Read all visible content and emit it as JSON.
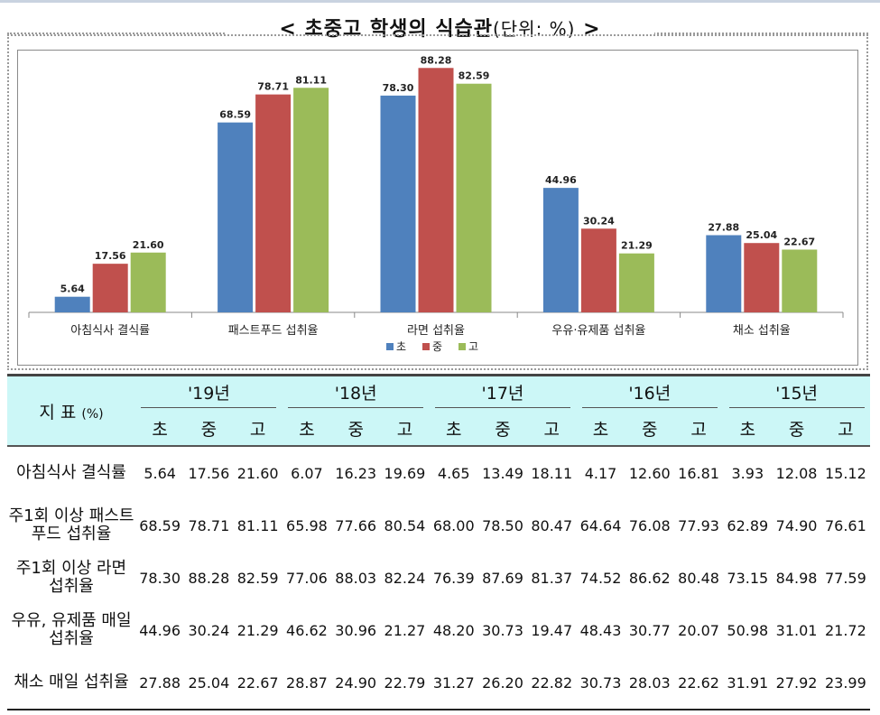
{
  "title": "< 초중고 학생의 식습관",
  "title_unit": "(단위: %)",
  "title_end": ">",
  "chart_data": {
    "type": "bar",
    "categories": [
      "아침식사 결식률",
      "패스트푸드 섭취율",
      "라면 섭취율",
      "우유·유제품 섭취율",
      "채소 섭취율"
    ],
    "series": [
      {
        "name": "초",
        "color": "#4f81bd",
        "values": [
          5.64,
          68.59,
          78.3,
          44.96,
          27.88
        ]
      },
      {
        "name": "중",
        "color": "#c0504d",
        "values": [
          17.56,
          78.71,
          88.28,
          30.24,
          25.04
        ]
      },
      {
        "name": "고",
        "color": "#9bbb59",
        "values": [
          21.6,
          81.11,
          82.59,
          21.29,
          22.67
        ]
      }
    ],
    "ylim": [
      0,
      90
    ],
    "grid": false,
    "legend": "bottom-center",
    "value_labels": [
      "5.64",
      "68.59",
      "78.30",
      "44.96",
      "27.88",
      "17.56",
      "78.71",
      "88.28",
      "30.24",
      "25.04",
      "21.60",
      "81.11",
      "82.59",
      "21.29",
      "22.67"
    ]
  },
  "table": {
    "indicator_header": "지   표",
    "indicator_unit": "(%)",
    "years": [
      "'19년",
      "'18년",
      "'17년",
      "'16년",
      "'15년"
    ],
    "levels": [
      "초",
      "중",
      "고"
    ],
    "rows": [
      {
        "label": "아침식사 결식률",
        "values": [
          "5.64",
          "17.56",
          "21.60",
          "6.07",
          "16.23",
          "19.69",
          "4.65",
          "13.49",
          "18.11",
          "4.17",
          "12.60",
          "16.81",
          "3.93",
          "12.08",
          "15.12"
        ]
      },
      {
        "label": "주1회 이상 패스트푸드 섭취율",
        "values": [
          "68.59",
          "78.71",
          "81.11",
          "65.98",
          "77.66",
          "80.54",
          "68.00",
          "78.50",
          "80.47",
          "64.64",
          "76.08",
          "77.93",
          "62.89",
          "74.90",
          "76.61"
        ]
      },
      {
        "label": "주1회 이상 라면 섭취율",
        "values": [
          "78.30",
          "88.28",
          "82.59",
          "77.06",
          "88.03",
          "82.24",
          "76.39",
          "87.69",
          "81.37",
          "74.52",
          "86.62",
          "80.48",
          "73.15",
          "84.98",
          "77.59"
        ]
      },
      {
        "label": "우유, 유제품 매일 섭취율",
        "values": [
          "44.96",
          "30.24",
          "21.29",
          "46.62",
          "30.96",
          "21.27",
          "48.20",
          "30.73",
          "19.47",
          "48.43",
          "30.77",
          "20.07",
          "50.98",
          "31.01",
          "21.72"
        ]
      },
      {
        "label": "채소 매일 섭취율",
        "values": [
          "27.88",
          "25.04",
          "22.67",
          "28.87",
          "24.90",
          "22.79",
          "31.27",
          "26.20",
          "22.82",
          "30.73",
          "28.03",
          "22.62",
          "31.91",
          "27.92",
          "23.99"
        ]
      }
    ]
  }
}
